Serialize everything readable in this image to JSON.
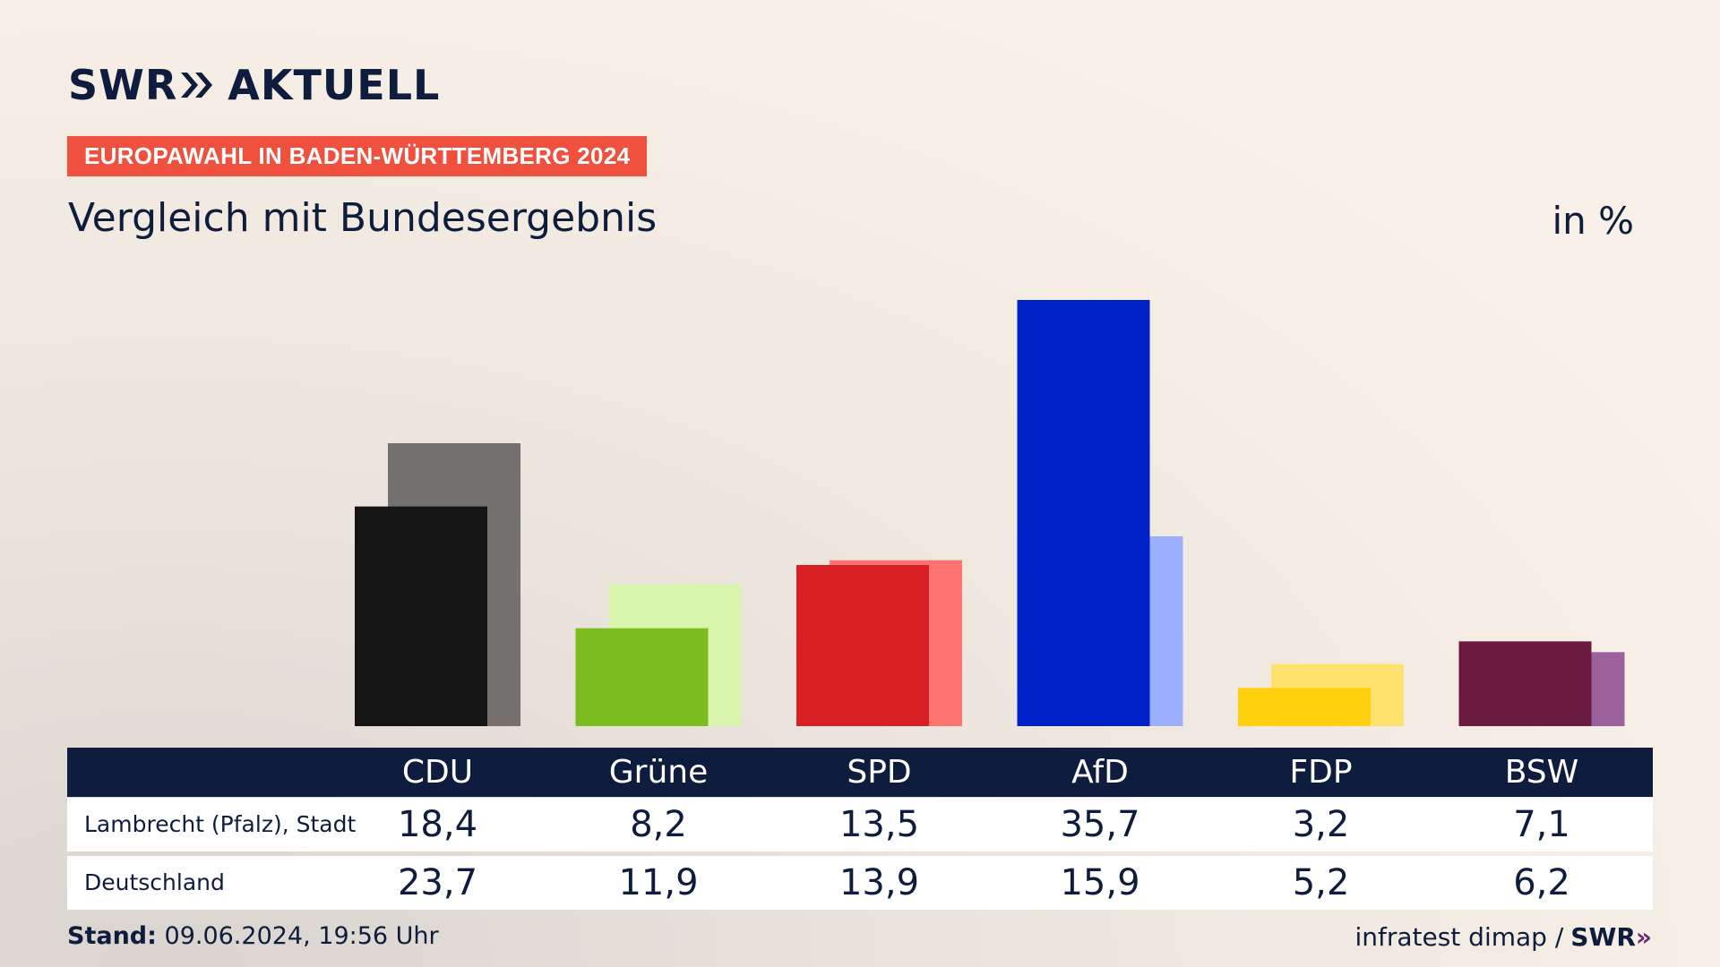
{
  "header": {
    "logo_text": "SWR",
    "logo_suffix": "AKTUELL",
    "kicker": "EUROPAWAHL IN BADEN-WÜRTTEMBERG 2024",
    "title": "Vergleich mit Bundesergebnis",
    "unit": "in %"
  },
  "footer": {
    "stand_label": "Stand:",
    "stand_value": "09.06.2024, 19:56 Uhr",
    "source": "infratest dimap /",
    "source_brand": "SWR"
  },
  "colors": {
    "navy": "#0e1c3d",
    "kicker": "#f0513f"
  },
  "chart_data": {
    "type": "bar",
    "title": "Vergleich mit Bundesergebnis",
    "unit": "in %",
    "categories": [
      "CDU",
      "Grüne",
      "SPD",
      "AfD",
      "FDP",
      "BSW"
    ],
    "ylim": [
      0,
      36
    ],
    "series": [
      {
        "name": "Lambrecht (Pfalz), Stadt",
        "values": [
          18.4,
          8.2,
          13.5,
          35.7,
          3.2,
          7.1
        ],
        "colors": [
          "#141414",
          "#7bbc1e",
          "#d71f24",
          "#0021c8",
          "#ffcf0d",
          "#6b1a40"
        ]
      },
      {
        "name": "Deutschland",
        "values": [
          23.7,
          11.9,
          13.9,
          15.9,
          5.2,
          6.2
        ],
        "colors": [
          "#75716f",
          "#d9f5ab",
          "#ff7470",
          "#9caeff",
          "#ffe16e",
          "#9a619c"
        ]
      }
    ],
    "display_values": [
      [
        "18,4",
        "8,2",
        "13,5",
        "35,7",
        "3,2",
        "7,1"
      ],
      [
        "23,7",
        "11,9",
        "13,9",
        "15,9",
        "5,2",
        "6,2"
      ]
    ]
  }
}
